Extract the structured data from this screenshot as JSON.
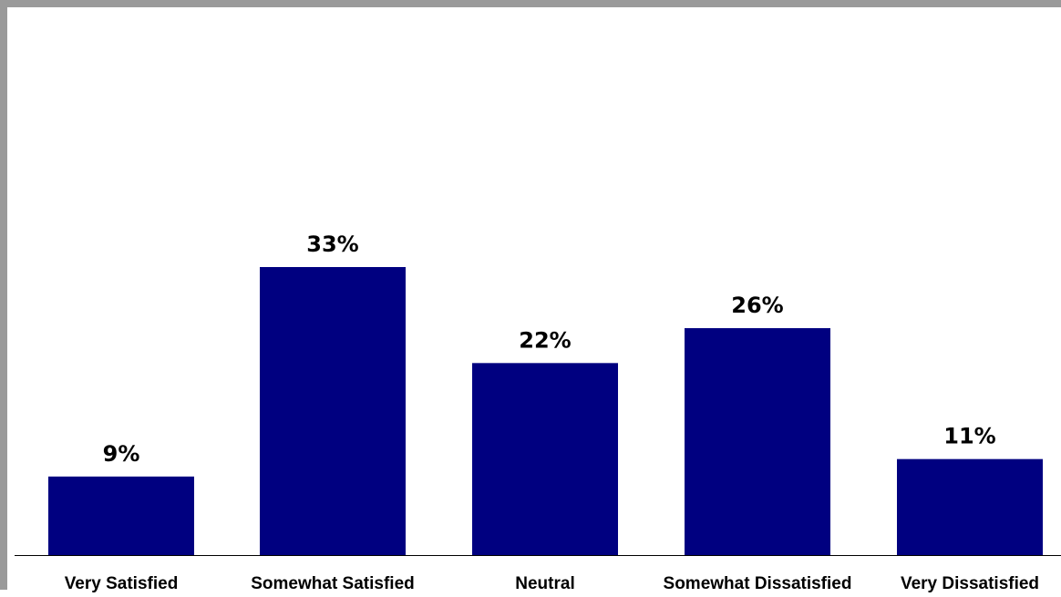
{
  "chart_data": {
    "type": "bar",
    "categories": [
      "Very Satisfied",
      "Somewhat Satisfied",
      "Neutral",
      "Somewhat Dissatisfied",
      "Very Dissatisfied"
    ],
    "values": [
      9,
      33,
      22,
      26,
      11
    ],
    "value_labels": [
      "9%",
      "33%",
      "22%",
      "26%",
      "11%"
    ],
    "title": "",
    "xlabel": "",
    "ylabel": "",
    "ylim": [
      0,
      60
    ],
    "grid": false,
    "legend": "none",
    "bar_color": "#000080",
    "frame_color": "#9a9a9a"
  }
}
